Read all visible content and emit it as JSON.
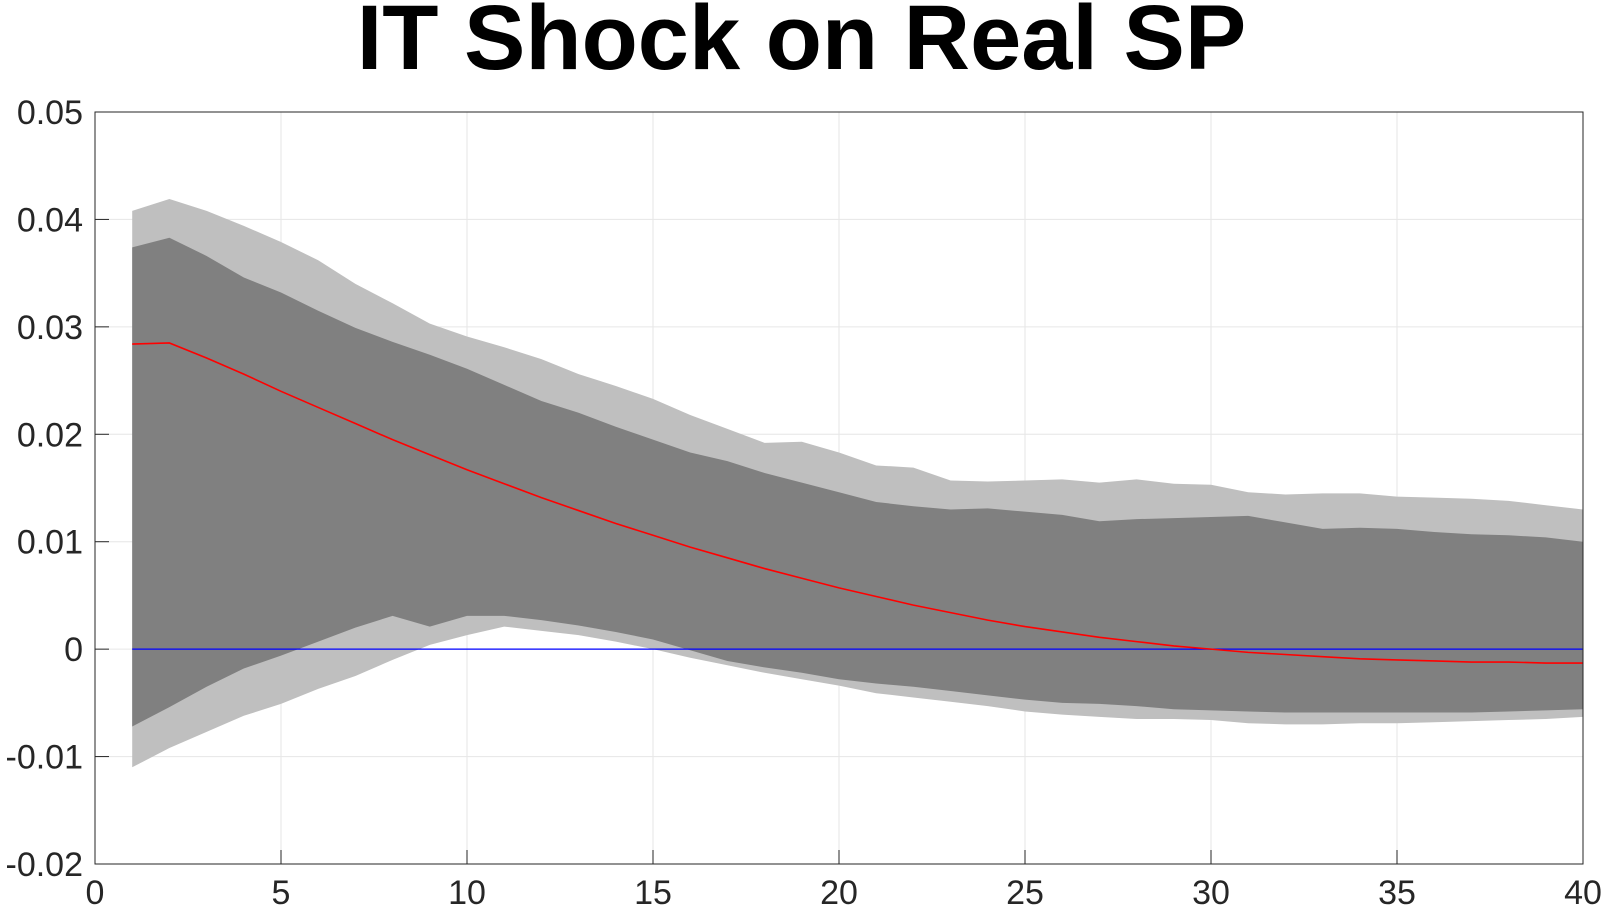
{
  "chart_data": {
    "type": "area",
    "title": "IT Shock on Real SP",
    "xlabel": "",
    "ylabel": "",
    "xlim": [
      0,
      40
    ],
    "ylim": [
      -0.02,
      0.05
    ],
    "xticks": [
      0,
      5,
      10,
      15,
      20,
      25,
      30,
      35,
      40
    ],
    "xtick_labels": [
      "0",
      "5",
      "10",
      "15",
      "20",
      "25",
      "30",
      "35",
      "40"
    ],
    "yticks": [
      -0.02,
      -0.01,
      0,
      0.01,
      0.02,
      0.03,
      0.04,
      0.05
    ],
    "ytick_labels": [
      "-0.02",
      "-0.01",
      "0",
      "0.01",
      "0.02",
      "0.03",
      "0.04",
      "0.05"
    ],
    "grid": true,
    "x": [
      1,
      2,
      3,
      4,
      5,
      6,
      7,
      8,
      9,
      10,
      11,
      12,
      13,
      14,
      15,
      16,
      17,
      18,
      19,
      20,
      21,
      22,
      23,
      24,
      25,
      26,
      27,
      28,
      29,
      30,
      31,
      32,
      33,
      34,
      35,
      36,
      37,
      38,
      39,
      40
    ],
    "series": [
      {
        "role": "outer-band",
        "color": "#bfbfbf",
        "upper": [
          0.0408,
          0.0419,
          0.0408,
          0.0394,
          0.0379,
          0.0362,
          0.034,
          0.0322,
          0.0303,
          0.0291,
          0.0281,
          0.027,
          0.0256,
          0.0245,
          0.0233,
          0.0218,
          0.0205,
          0.0192,
          0.0193,
          0.0183,
          0.0171,
          0.0169,
          0.0157,
          0.0156,
          0.0157,
          0.0158,
          0.0155,
          0.0158,
          0.0154,
          0.0153,
          0.0146,
          0.0144,
          0.0145,
          0.0145,
          0.0142,
          0.0141,
          0.014,
          0.0138,
          0.0134,
          0.013
        ],
        "lower": [
          -0.011,
          -0.0092,
          -0.0077,
          -0.0062,
          -0.0051,
          -0.0037,
          -0.0025,
          -0.001,
          0.0004,
          0.0013,
          0.0021,
          0.0017,
          0.0013,
          0.0007,
          -0.0,
          -0.0008,
          -0.0015,
          -0.0022,
          -0.0028,
          -0.0034,
          -0.0041,
          -0.0045,
          -0.0049,
          -0.0053,
          -0.0058,
          -0.0061,
          -0.0063,
          -0.0065,
          -0.0065,
          -0.0066,
          -0.0069,
          -0.007,
          -0.007,
          -0.0069,
          -0.0069,
          -0.0068,
          -0.0067,
          -0.0066,
          -0.0065,
          -0.0063
        ]
      },
      {
        "role": "inner-band",
        "color": "#808080",
        "upper": [
          0.0374,
          0.0383,
          0.0366,
          0.0346,
          0.0332,
          0.0315,
          0.0299,
          0.0286,
          0.0274,
          0.0261,
          0.0246,
          0.0231,
          0.022,
          0.0207,
          0.0195,
          0.0183,
          0.0175,
          0.0164,
          0.0155,
          0.0146,
          0.0137,
          0.0133,
          0.013,
          0.0131,
          0.0128,
          0.0125,
          0.0119,
          0.0121,
          0.0122,
          0.0123,
          0.0124,
          0.0118,
          0.0112,
          0.0113,
          0.0112,
          0.0109,
          0.0107,
          0.0106,
          0.0104,
          0.01
        ],
        "lower": [
          -0.0072,
          -0.0054,
          -0.0035,
          -0.0018,
          -0.0006,
          0.0007,
          0.002,
          0.0031,
          0.0021,
          0.0031,
          0.0031,
          0.0027,
          0.0022,
          0.0016,
          0.0009,
          -0.0001,
          -0.0011,
          -0.0017,
          -0.0022,
          -0.0028,
          -0.0032,
          -0.0035,
          -0.0039,
          -0.0043,
          -0.0047,
          -0.005,
          -0.0051,
          -0.0053,
          -0.0056,
          -0.0057,
          -0.0058,
          -0.0059,
          -0.0059,
          -0.0059,
          -0.0059,
          -0.0059,
          -0.0059,
          -0.0058,
          -0.0057,
          -0.0056
        ]
      },
      {
        "role": "median",
        "color": "#ff0000",
        "values": [
          0.0284,
          0.0285,
          0.0271,
          0.0256,
          0.024,
          0.0225,
          0.021,
          0.0195,
          0.0181,
          0.0167,
          0.0154,
          0.0141,
          0.0129,
          0.0117,
          0.0106,
          0.0095,
          0.0085,
          0.0075,
          0.0066,
          0.0057,
          0.0049,
          0.0041,
          0.0034,
          0.0027,
          0.0021,
          0.0016,
          0.0011,
          0.0007,
          0.0003,
          -0.0,
          -0.0003,
          -0.0005,
          -0.0007,
          -0.0009,
          -0.001,
          -0.0011,
          -0.0012,
          -0.0012,
          -0.0013,
          -0.0013
        ]
      },
      {
        "role": "zero-line",
        "color": "#0000ff",
        "values": [
          0,
          0,
          0,
          0,
          0,
          0,
          0,
          0,
          0,
          0,
          0,
          0,
          0,
          0,
          0,
          0,
          0,
          0,
          0,
          0,
          0,
          0,
          0,
          0,
          0,
          0,
          0,
          0,
          0,
          0,
          0,
          0,
          0,
          0,
          0,
          0,
          0,
          0,
          0,
          0
        ]
      }
    ]
  }
}
